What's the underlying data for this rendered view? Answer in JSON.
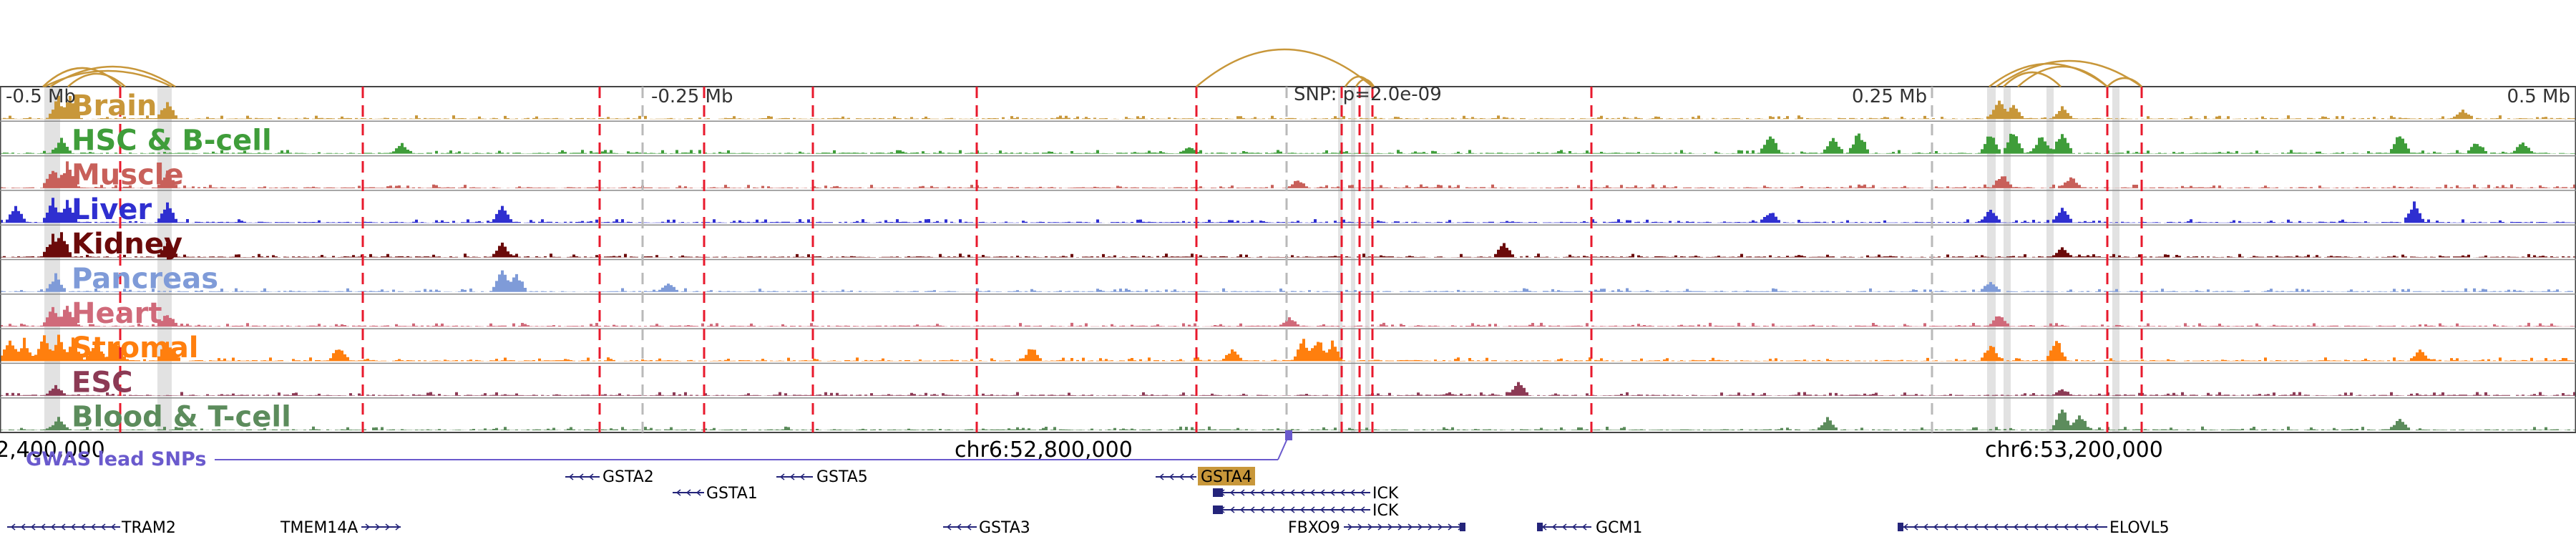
{
  "browser": {
    "scale_labels": [
      "-0.5 Mb",
      "-0.25 Mb",
      "0.25 Mb",
      "0.5 Mb"
    ],
    "snp_label": "SNP: p=2.0e-09",
    "coordinate_labels": [
      "2,400,000",
      "chr6:52,800,000",
      "chr6:53,200,000"
    ],
    "gwas_label": "GWAS lead SNPs",
    "colors": {
      "frame": "#444444",
      "red_marker": "#e8192c",
      "gray_marker": "#b9b9b9",
      "highlight_band": "#e2e2e2",
      "loop_arc": "#c8973a",
      "gene": "#24247a",
      "gwas": "#6a5acd",
      "gsta4_box": "#c8973a"
    }
  },
  "tracks": [
    {
      "name": "Brain",
      "color": "#c8973a"
    },
    {
      "name": "HSC & B-cell",
      "color": "#3f9d3a"
    },
    {
      "name": "Muscle",
      "color": "#c8605a"
    },
    {
      "name": "Liver",
      "color": "#2f2fd0"
    },
    {
      "name": "Kidney",
      "color": "#6b0a0a"
    },
    {
      "name": "Pancreas",
      "color": "#7f9bd8"
    },
    {
      "name": "Heart",
      "color": "#d06a7a"
    },
    {
      "name": "Stromal",
      "color": "#ff7f0e"
    },
    {
      "name": "ESC",
      "color": "#8c3a55"
    },
    {
      "name": "Blood & T-cell",
      "color": "#5c8c5c"
    }
  ],
  "genes": [
    {
      "name": "GSTA2"
    },
    {
      "name": "GSTA1"
    },
    {
      "name": "GSTA5"
    },
    {
      "name": "GSTA4"
    },
    {
      "name": "ICK"
    },
    {
      "name": "ICK"
    },
    {
      "name": "TRAM2"
    },
    {
      "name": "TMEM14A"
    },
    {
      "name": "GSTA3"
    },
    {
      "name": "FBXO9"
    },
    {
      "name": "GCM1"
    },
    {
      "name": "ELOVL5"
    }
  ]
}
